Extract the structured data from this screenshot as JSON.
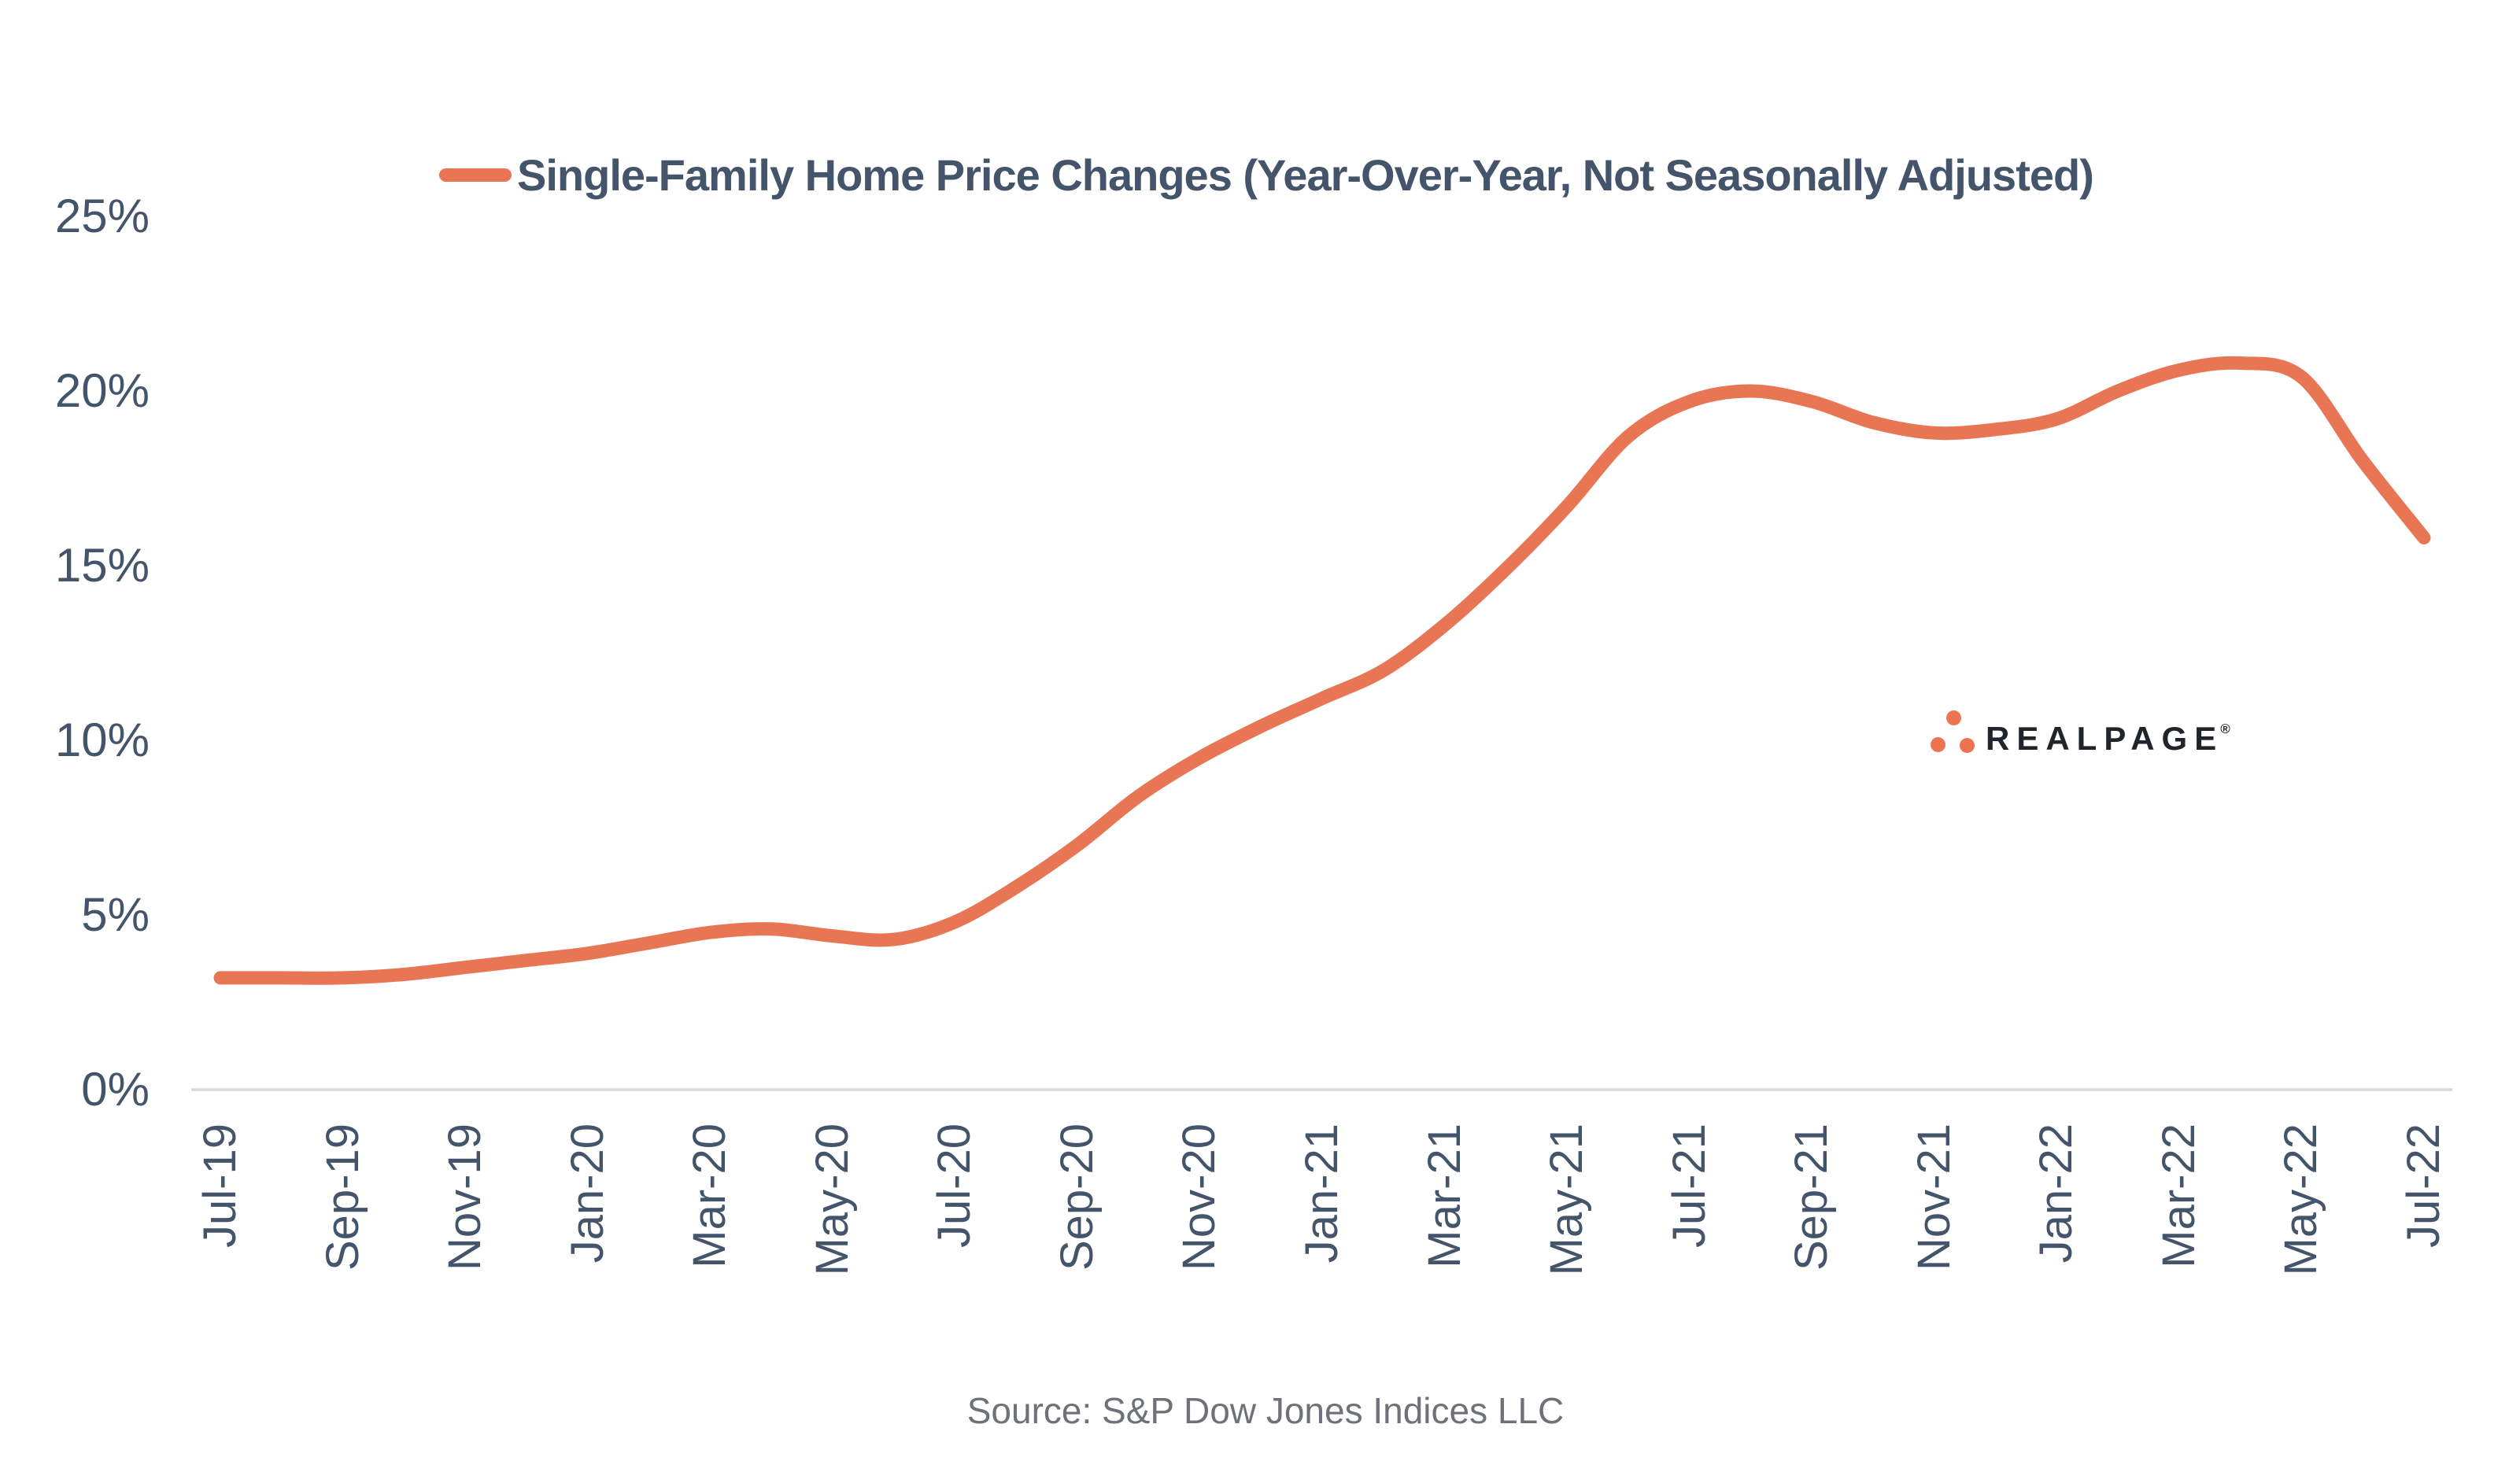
{
  "chart_data": {
    "type": "line",
    "title": "Single-Family Home Price Changes (Year-Over-Year, Not Seasonally Adjusted)",
    "legend_position": "top-center",
    "line_color": "#E87655",
    "smooth": true,
    "grid": "x-axis-baseline-only",
    "ylim": [
      0,
      25
    ],
    "y_ticks": [
      "0%",
      "5%",
      "10%",
      "15%",
      "20%",
      "25%"
    ],
    "x_tick_labels": [
      "Jul-19",
      "Sep-19",
      "Nov-19",
      "Jan-20",
      "Mar-20",
      "May-20",
      "Jul-20",
      "Sep-20",
      "Nov-20",
      "Jan-21",
      "Mar-21",
      "May-21",
      "Jul-21",
      "Sep-21",
      "Nov-21",
      "Jan-22",
      "Mar-22",
      "May-22",
      "Jul-22"
    ],
    "x": [
      "Jul-19",
      "Aug-19",
      "Sep-19",
      "Oct-19",
      "Nov-19",
      "Dec-19",
      "Jan-20",
      "Feb-20",
      "Mar-20",
      "Apr-20",
      "May-20",
      "Jun-20",
      "Jul-20",
      "Aug-20",
      "Sep-20",
      "Oct-20",
      "Nov-20",
      "Dec-20",
      "Jan-21",
      "Feb-21",
      "Mar-21",
      "Apr-21",
      "May-21",
      "Jun-21",
      "Jul-21",
      "Aug-21",
      "Sep-21",
      "Oct-21",
      "Nov-21",
      "Dec-21",
      "Jan-22",
      "Feb-22",
      "Mar-22",
      "Apr-22",
      "May-22",
      "Jun-22",
      "Jul-22"
    ],
    "values": [
      3.2,
      3.2,
      3.2,
      3.3,
      3.5,
      3.7,
      3.9,
      4.2,
      4.5,
      4.6,
      4.4,
      4.3,
      4.8,
      5.8,
      7.0,
      8.4,
      9.5,
      10.4,
      11.2,
      12.0,
      13.3,
      14.9,
      16.7,
      18.7,
      19.7,
      20.0,
      19.7,
      19.1,
      18.8,
      18.9,
      19.2,
      20.0,
      20.6,
      20.8,
      20.4,
      18.0,
      15.8
    ],
    "value_unit": "%"
  },
  "source": {
    "text": "Source: S&P Dow Jones Indices LLC"
  },
  "logo": {
    "text": "REALPAGE",
    "reg": "®"
  },
  "colors": {
    "accent_coral": "#E87655",
    "logo_dot": "#EC7450",
    "logo_text": "#20242C",
    "label_slate": "#44546A",
    "axis_line": "#D9D9D9",
    "source_gray": "#6E7278",
    "background": "#FFFFFF"
  }
}
